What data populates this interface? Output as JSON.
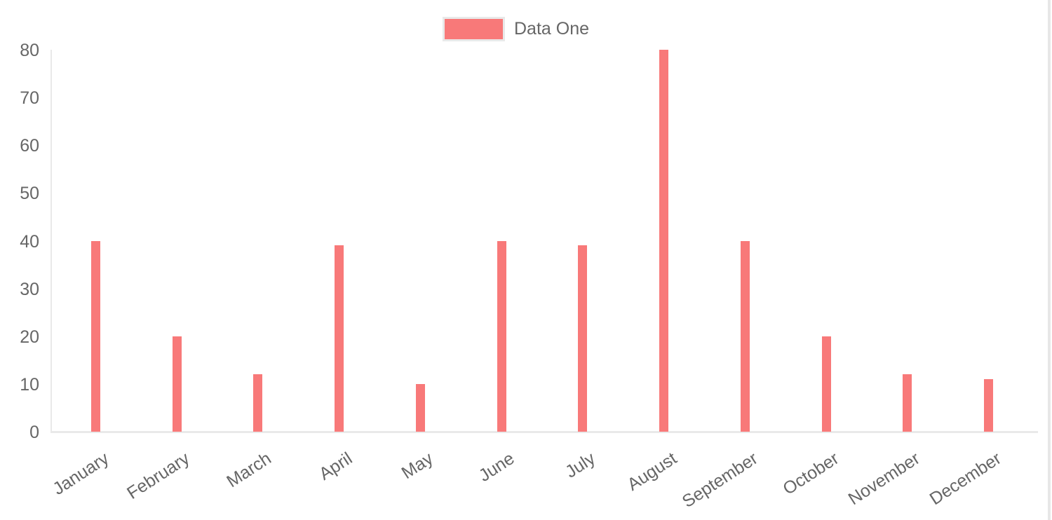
{
  "legend": {
    "items": [
      {
        "label": "Data One",
        "color": "#f87979"
      }
    ]
  },
  "chart_data": {
    "type": "bar",
    "title": "",
    "categories": [
      "January",
      "February",
      "March",
      "April",
      "May",
      "June",
      "July",
      "August",
      "September",
      "October",
      "November",
      "December"
    ],
    "series": [
      {
        "name": "Data One",
        "color": "#f87979",
        "values": [
          40,
          20,
          12,
          39,
          10,
          40,
          39,
          80,
          40,
          20,
          12,
          11
        ]
      }
    ],
    "xlabel": "",
    "ylabel": "",
    "ylim": [
      0,
      80
    ],
    "yticks": [
      0,
      10,
      20,
      30,
      40,
      50,
      60,
      70,
      80
    ],
    "grid": false,
    "legend_position": "top-center"
  },
  "colors": {
    "bar": "#f87979",
    "axis_line": "#e9e9e9",
    "tick_text": "#666666",
    "window_edge": "#e7e7e7"
  }
}
